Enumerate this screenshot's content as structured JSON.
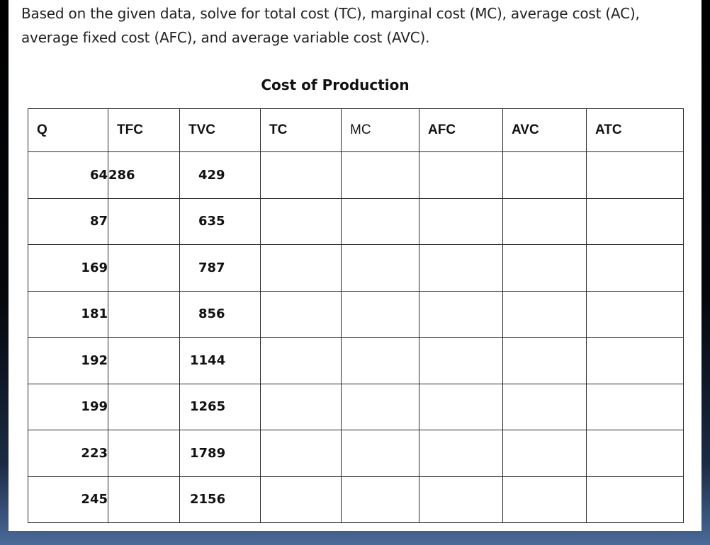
{
  "intro": "Based on the given data, solve for total cost (TC), marginal cost (MC), average cost (AC), average fixed cost (AFC), and average variable cost (AVC).",
  "table": {
    "caption": "Cost of Production",
    "headers": [
      "Q",
      "TFC",
      "TVC",
      "TC",
      "MC",
      "AFC",
      "AVC",
      "ATC"
    ],
    "rows": [
      {
        "q": "64",
        "tfc": "286",
        "tvc": "429"
      },
      {
        "q": "87",
        "tfc": "",
        "tvc": "635"
      },
      {
        "q": "169",
        "tfc": "",
        "tvc": "787"
      },
      {
        "q": "181",
        "tfc": "",
        "tvc": "856"
      },
      {
        "q": "192",
        "tfc": "",
        "tvc": "1144"
      },
      {
        "q": "199",
        "tfc": "",
        "tvc": "1265"
      },
      {
        "q": "223",
        "tfc": "",
        "tvc": "1789"
      },
      {
        "q": "245",
        "tfc": "",
        "tvc": "2156"
      }
    ]
  }
}
